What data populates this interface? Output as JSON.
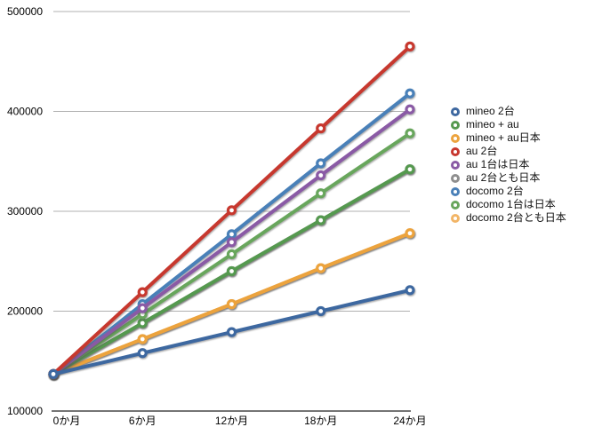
{
  "chart_data": {
    "type": "line",
    "title": "",
    "xlabel": "",
    "ylabel": "",
    "x_categories": [
      "0か月",
      "6か月",
      "12か月",
      "18か月",
      "24か月"
    ],
    "ylim": [
      100000,
      500000
    ],
    "y_tick_step": 100000,
    "y_tick_labels": [
      "100000",
      "200000",
      "300000",
      "400000",
      "500000"
    ],
    "grid": true,
    "legend_position": "right",
    "marker": "open-circle",
    "series": [
      {
        "name": "mineo 2台",
        "color": "#3e68a0",
        "values": [
          137000,
          158000,
          179000,
          200000,
          221000
        ]
      },
      {
        "name": "mineo + au",
        "color": "#55994f",
        "values": [
          137000,
          188000,
          240000,
          291000,
          342000
        ]
      },
      {
        "name": "mineo + au日本",
        "color": "#eca33e",
        "values": [
          137000,
          172000,
          207000,
          243000,
          278000
        ]
      },
      {
        "name": "au 2台",
        "color": "#c7372f",
        "values": [
          137000,
          219000,
          301000,
          383000,
          465000
        ]
      },
      {
        "name": "au 1台は日本",
        "color": "#8a5aa5",
        "values": [
          137000,
          203000,
          269000,
          336000,
          402000
        ]
      },
      {
        "name": "au 2台とも日本",
        "color": "#8e8e8e",
        "values": [
          137000,
          188000,
          240000,
          291000,
          342000
        ]
      },
      {
        "name": "docomo 2台",
        "color": "#4a80b8",
        "values": [
          137000,
          207000,
          277000,
          348000,
          418000
        ]
      },
      {
        "name": "docomo 1台は日本",
        "color": "#68a65c",
        "values": [
          137000,
          197000,
          257000,
          318000,
          378000
        ]
      },
      {
        "name": "docomo 2台とも日本",
        "color": "#f2b567",
        "values": [
          137000,
          172000,
          207000,
          243000,
          278000
        ]
      }
    ],
    "z_order": [
      5,
      8,
      2,
      1,
      7,
      6,
      4,
      3,
      0
    ],
    "colors": {
      "gridline": "#b0b0b0",
      "axis_line": "#222222",
      "tick_text": "#000000"
    }
  }
}
